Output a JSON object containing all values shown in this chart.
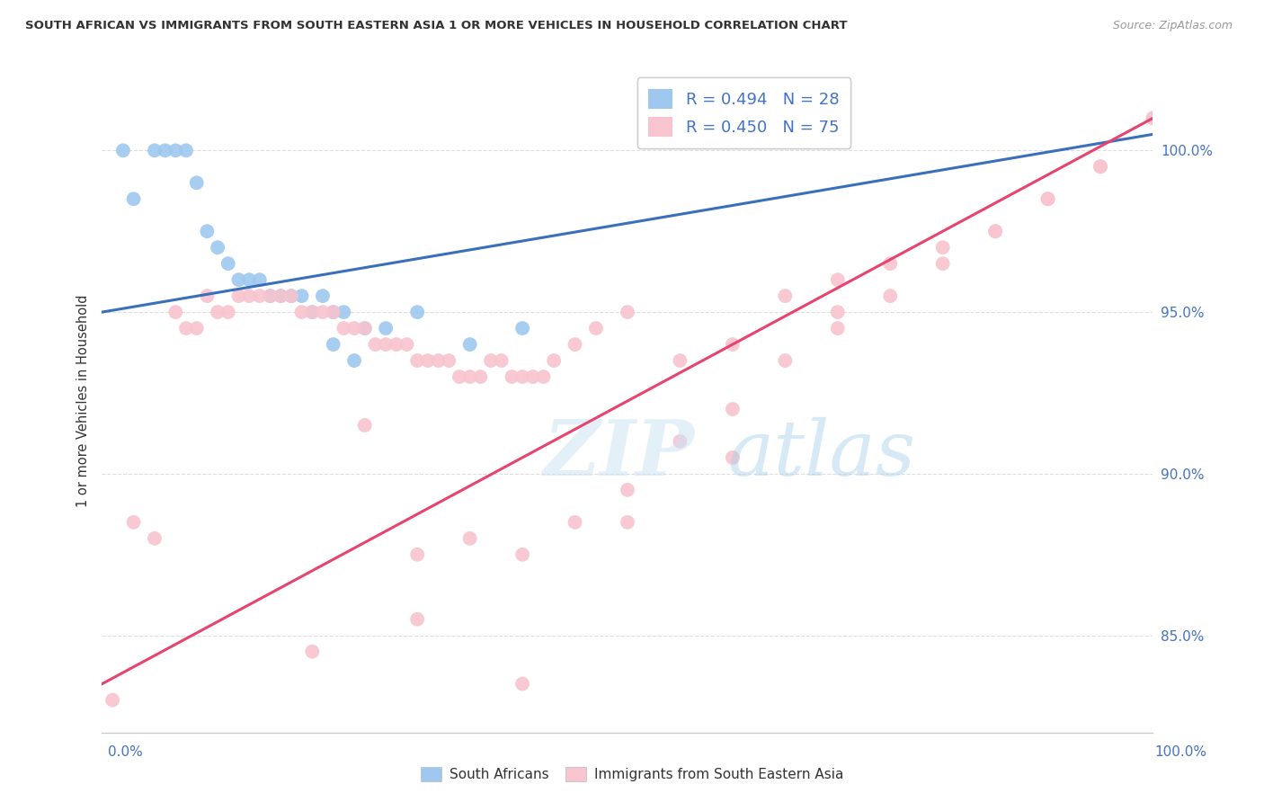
{
  "title": "SOUTH AFRICAN VS IMMIGRANTS FROM SOUTH EASTERN ASIA 1 OR MORE VEHICLES IN HOUSEHOLD CORRELATION CHART",
  "source": "Source: ZipAtlas.com",
  "ylabel": "1 or more Vehicles in Household",
  "yaxis_tick_values": [
    85.0,
    90.0,
    95.0,
    100.0
  ],
  "xaxis_range": [
    0.0,
    100.0
  ],
  "yaxis_range": [
    82.0,
    102.5
  ],
  "legend_entries": [
    {
      "label": "R = 0.494   N = 28",
      "color": "#7fb3e8"
    },
    {
      "label": "R = 0.450   N = 75",
      "color": "#f4a7b9"
    }
  ],
  "south_africans_x": [
    2,
    3,
    5,
    6,
    7,
    8,
    9,
    10,
    11,
    12,
    13,
    14,
    15,
    16,
    17,
    18,
    19,
    20,
    21,
    22,
    23,
    25,
    27,
    30,
    35,
    40,
    22,
    24
  ],
  "south_africans_y": [
    100.0,
    98.5,
    100.0,
    100.0,
    100.0,
    100.0,
    99.0,
    97.5,
    97.0,
    96.5,
    96.0,
    96.0,
    96.0,
    95.5,
    95.5,
    95.5,
    95.5,
    95.0,
    95.5,
    95.0,
    95.0,
    94.5,
    94.5,
    95.0,
    94.0,
    94.5,
    94.0,
    93.5
  ],
  "immigrants_x": [
    1,
    3,
    5,
    7,
    8,
    9,
    10,
    11,
    12,
    13,
    14,
    15,
    16,
    17,
    18,
    19,
    20,
    21,
    22,
    23,
    24,
    25,
    26,
    27,
    28,
    29,
    30,
    31,
    32,
    33,
    34,
    35,
    36,
    37,
    38,
    39,
    40,
    41,
    42,
    43,
    45,
    47,
    50,
    55,
    60,
    65,
    70,
    75,
    80,
    85,
    90,
    95,
    100,
    25,
    30,
    35,
    40,
    45,
    50,
    55,
    60,
    65,
    70,
    75,
    80,
    85,
    90,
    95,
    100,
    20,
    30,
    40,
    50,
    60,
    70
  ],
  "immigrants_y": [
    83.0,
    88.5,
    88.0,
    95.0,
    94.5,
    94.5,
    95.5,
    95.0,
    95.0,
    95.5,
    95.5,
    95.5,
    95.5,
    95.5,
    95.5,
    95.0,
    95.0,
    95.0,
    95.0,
    94.5,
    94.5,
    94.5,
    94.0,
    94.0,
    94.0,
    94.0,
    93.5,
    93.5,
    93.5,
    93.5,
    93.0,
    93.0,
    93.0,
    93.5,
    93.5,
    93.0,
    93.0,
    93.0,
    93.0,
    93.5,
    94.0,
    94.5,
    95.0,
    93.5,
    94.0,
    95.5,
    96.0,
    96.5,
    97.0,
    97.5,
    98.5,
    99.5,
    101.0,
    91.5,
    87.5,
    88.0,
    87.5,
    88.5,
    89.5,
    91.0,
    92.0,
    93.5,
    94.5,
    95.5,
    96.5,
    97.5,
    98.5,
    99.5,
    101.0,
    84.5,
    85.5,
    83.5,
    88.5,
    90.5,
    95.0
  ],
  "sa_line_x": [
    0,
    100
  ],
  "sa_line_y_start": 95.0,
  "sa_line_y_end": 100.5,
  "imm_line_x": [
    0,
    100
  ],
  "imm_line_y_start": 83.5,
  "imm_line_y_end": 101.0,
  "sa_color": "#9ec8f0",
  "sa_line_color": "#3a6fbc",
  "imm_color": "#f8c4cf",
  "imm_line_color": "#e8436f",
  "watermark_zip": "ZIP",
  "watermark_atlas": "atlas",
  "watermark_zip_color": "#c5dff0",
  "watermark_atlas_color": "#a8c8e0",
  "background_color": "#ffffff",
  "grid_color": "#dddddd",
  "title_color": "#333333",
  "source_color": "#999999",
  "tick_label_color": "#4472c4",
  "bottom_legend": [
    "South Africans",
    "Immigrants from South Eastern Asia"
  ]
}
